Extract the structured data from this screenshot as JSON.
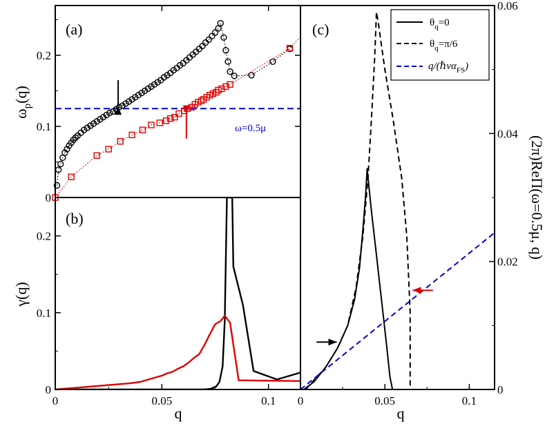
{
  "chart_data": [
    {
      "panel": "a",
      "type": "scatter",
      "panel_label": "(a)",
      "ylabel": {
        "main": "ω",
        "sub": "p",
        "rest": "(q)"
      },
      "xlim": [
        0,
        0.115
      ],
      "ylim": [
        0,
        0.27
      ],
      "yticks": [
        0,
        0.1,
        0.2
      ],
      "ytick_labels": [
        "0",
        "0.1",
        "0.2"
      ],
      "annotation": "ω=0.5μ",
      "hline": {
        "y": 0.125,
        "color": "#0000dd",
        "style": "dashed"
      },
      "arrows": [
        {
          "color": "#000000",
          "direction": "down",
          "x": 0.0295,
          "y_tip": 0.128,
          "y_tail": 0.165
        },
        {
          "color": "#dd0000",
          "direction": "up",
          "x": 0.0615,
          "y_tip": 0.118,
          "y_tail": 0.083
        }
      ],
      "series": [
        {
          "marker": "circle",
          "color": "#000000",
          "x": [
            0.0008,
            0.0015,
            0.0025,
            0.0035,
            0.0045,
            0.0055,
            0.0065,
            0.0075,
            0.0085,
            0.0095,
            0.0105,
            0.012,
            0.0135,
            0.015,
            0.0165,
            0.018,
            0.0195,
            0.021,
            0.0225,
            0.024,
            0.0255,
            0.027,
            0.0285,
            0.03,
            0.0315,
            0.033,
            0.0345,
            0.036,
            0.0375,
            0.039,
            0.0405,
            0.042,
            0.0435,
            0.045,
            0.0465,
            0.048,
            0.0495,
            0.051,
            0.0525,
            0.054,
            0.0555,
            0.057,
            0.0585,
            0.06,
            0.0615,
            0.063,
            0.0645,
            0.066,
            0.0675,
            0.069,
            0.0705,
            0.072,
            0.0735,
            0.075,
            0.0765,
            0.0775,
            0.079,
            0.08,
            0.081,
            0.082,
            0.084,
            0.092,
            0.102,
            0.11
          ],
          "y": [
            0.017,
            0.039,
            0.047,
            0.056,
            0.063,
            0.068,
            0.073,
            0.077,
            0.081,
            0.084,
            0.087,
            0.091,
            0.095,
            0.098,
            0.101,
            0.104,
            0.107,
            0.11,
            0.113,
            0.116,
            0.119,
            0.121,
            0.124,
            0.127,
            0.129,
            0.132,
            0.135,
            0.138,
            0.141,
            0.144,
            0.147,
            0.15,
            0.153,
            0.156,
            0.159,
            0.162,
            0.165,
            0.169,
            0.172,
            0.175,
            0.179,
            0.182,
            0.186,
            0.189,
            0.193,
            0.197,
            0.201,
            0.205,
            0.209,
            0.213,
            0.218,
            0.222,
            0.227,
            0.232,
            0.238,
            0.245,
            0.225,
            0.207,
            0.191,
            0.177,
            0.171,
            0.172,
            0.191,
            0.209
          ]
        },
        {
          "marker": "square",
          "color": "#dd0000",
          "x": [
            0.0,
            0.0075,
            0.0195,
            0.025,
            0.0305,
            0.036,
            0.041,
            0.045,
            0.049,
            0.052,
            0.054,
            0.056,
            0.058,
            0.0605,
            0.062,
            0.064,
            0.0655,
            0.067,
            0.0685,
            0.0695,
            0.071,
            0.0725,
            0.074,
            0.0755,
            0.0765,
            0.078,
            0.08,
            0.082,
            0.11
          ],
          "y": [
            0.0,
            0.029,
            0.059,
            0.068,
            0.079,
            0.088,
            0.095,
            0.102,
            0.105,
            0.108,
            0.111,
            0.113,
            0.118,
            0.122,
            0.125,
            0.127,
            0.131,
            0.134,
            0.136,
            0.138,
            0.141,
            0.144,
            0.146,
            0.148,
            0.151,
            0.153,
            0.156,
            0.159,
            0.21
          ]
        }
      ]
    },
    {
      "panel": "b",
      "type": "line",
      "panel_label": "(b)",
      "xlabel": "q",
      "ylabel": "γ(q)",
      "xlim": [
        0,
        0.115
      ],
      "ylim": [
        0,
        0.25
      ],
      "xticks": [
        0,
        0.05,
        0.1
      ],
      "xtick_labels": [
        "0",
        "0.05",
        "0.1"
      ],
      "yticks": [
        0,
        0.1,
        0.2
      ],
      "ytick_labels": [
        "0",
        "0.1",
        "0.2"
      ],
      "series": [
        {
          "color": "#000000",
          "x": [
            0.0,
            0.07,
            0.073,
            0.0755,
            0.077,
            0.0785,
            0.0795,
            0.0805,
            0.082,
            0.083,
            0.0835,
            0.088,
            0.093,
            0.104,
            0.115
          ],
          "y": [
            0.0,
            0.0,
            0.001,
            0.004,
            0.01,
            0.03,
            0.09,
            0.25,
            0.25,
            0.25,
            0.16,
            0.11,
            0.024,
            0.013,
            0.022
          ]
        },
        {
          "color": "#dd0000",
          "x": [
            0.0,
            0.035,
            0.04,
            0.045,
            0.05,
            0.0525,
            0.055,
            0.0575,
            0.06,
            0.0625,
            0.065,
            0.0675,
            0.07,
            0.0725,
            0.075,
            0.0775,
            0.0795,
            0.082,
            0.086,
            0.115
          ],
          "y": [
            0.0,
            0.008,
            0.01,
            0.014,
            0.018,
            0.021,
            0.023,
            0.027,
            0.03,
            0.035,
            0.041,
            0.046,
            0.058,
            0.072,
            0.085,
            0.089,
            0.096,
            0.087,
            0.012,
            0.011
          ]
        }
      ]
    },
    {
      "panel": "c",
      "type": "line",
      "panel_label": "(c)",
      "xlabel": "q",
      "ylabel": "(2π)ReΠ(ω=0.5μ, q)",
      "xlim": [
        0,
        0.115
      ],
      "ylim": [
        0,
        0.06
      ],
      "xticks": [
        0,
        0.05,
        0.1
      ],
      "xtick_labels": [
        "0",
        "0.05",
        "0.1"
      ],
      "yticks": [
        0,
        0.02,
        0.04,
        0.06
      ],
      "ytick_labels": [
        "0",
        "0.02",
        "0.04",
        "0.06"
      ],
      "legend": {
        "placement": "top-right",
        "entries": [
          {
            "main": "θ",
            "sub": "q",
            "rest": "=0",
            "color": "#000000",
            "style": "solid"
          },
          {
            "main": "θ",
            "sub": "q",
            "rest": "=π/6",
            "color": "#000000",
            "style": "dashed"
          },
          {
            "main": "q/(ℏvα",
            "sub": "FS",
            "rest": ")",
            "color": "#0000dd",
            "style": "dashed"
          }
        ]
      },
      "arrows": [
        {
          "color": "#000000",
          "direction": "right",
          "y": 0.0074,
          "x_tail": 0.0095,
          "x_tip": 0.0215
        },
        {
          "color": "#dd0000",
          "direction": "left",
          "y": 0.0155,
          "x_tail": 0.0785,
          "x_tip": 0.0665
        }
      ],
      "series": [
        {
          "name": "θq=0",
          "color": "#000000",
          "dash": "solid",
          "x": [
            0.002,
            0.008,
            0.015,
            0.022,
            0.028,
            0.032,
            0.035,
            0.037,
            0.0385,
            0.0395,
            0.042,
            0.045,
            0.048,
            0.051,
            0.053,
            0.0545
          ],
          "y": [
            0.0,
            0.0012,
            0.0035,
            0.0065,
            0.01,
            0.014,
            0.019,
            0.025,
            0.03,
            0.0345,
            0.028,
            0.021,
            0.014,
            0.007,
            0.002,
            0.0
          ]
        },
        {
          "name": "θq=π/6",
          "color": "#000000",
          "dash": "dashed",
          "x": [
            0.003,
            0.015,
            0.022,
            0.028,
            0.033,
            0.037,
            0.04,
            0.042,
            0.044,
            0.045,
            0.046,
            0.05,
            0.055,
            0.06,
            0.063,
            0.065,
            0.065
          ],
          "y": [
            0.0,
            0.0035,
            0.0065,
            0.01,
            0.016,
            0.024,
            0.033,
            0.042,
            0.052,
            0.059,
            0.0575,
            0.05,
            0.042,
            0.033,
            0.024,
            0.012,
            0.0
          ]
        },
        {
          "name": "q/(ħvαFS)",
          "color": "#0000dd",
          "dash": "dashed",
          "x": [
            0.0,
            0.115
          ],
          "y": [
            0.0,
            0.0245
          ]
        }
      ]
    }
  ]
}
